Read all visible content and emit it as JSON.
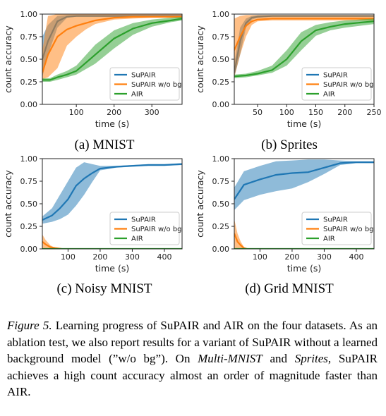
{
  "colors": {
    "SuPAIR": "#1f77b4",
    "SuPAIR w/o bg": "#ff7f0e",
    "AIR": "#2ca02c"
  },
  "chart_data": [
    {
      "type": "line",
      "caption": "(a) MNIST",
      "xlabel": "time (s)",
      "ylabel": "count accuracy",
      "xlim": [
        10,
        380
      ],
      "ylim": [
        0,
        1
      ],
      "xticks": [
        100,
        200,
        300
      ],
      "yticks": [
        0.0,
        0.25,
        0.5,
        0.75,
        1.0
      ],
      "legend": "lower-right",
      "series": [
        {
          "name": "SuPAIR",
          "x": [
            10,
            25,
            50,
            75,
            100,
            150,
            200,
            250,
            300,
            380
          ],
          "y": [
            0.5,
            0.7,
            0.92,
            0.97,
            0.98,
            0.98,
            0.98,
            0.98,
            0.98,
            0.98
          ],
          "lo": [
            0.3,
            0.55,
            0.85,
            0.96,
            0.97,
            0.97,
            0.97,
            0.97,
            0.97,
            0.97
          ],
          "hi": [
            0.75,
            0.88,
            0.98,
            0.99,
            0.99,
            0.99,
            0.99,
            0.99,
            0.99,
            0.99
          ]
        },
        {
          "name": "SuPAIR w/o bg",
          "x": [
            10,
            25,
            50,
            75,
            100,
            125,
            150,
            200,
            250,
            300,
            380
          ],
          "y": [
            0.35,
            0.55,
            0.75,
            0.83,
            0.87,
            0.9,
            0.93,
            0.96,
            0.97,
            0.97,
            0.97
          ],
          "lo": [
            0.28,
            0.3,
            0.4,
            0.65,
            0.75,
            0.83,
            0.89,
            0.94,
            0.95,
            0.96,
            0.96
          ],
          "hi": [
            0.6,
            0.98,
            1.0,
            1.0,
            1.0,
            1.0,
            1.0,
            1.0,
            1.0,
            1.0,
            1.0
          ]
        },
        {
          "name": "AIR",
          "x": [
            10,
            30,
            50,
            75,
            100,
            150,
            200,
            250,
            300,
            350,
            380
          ],
          "y": [
            0.27,
            0.27,
            0.3,
            0.33,
            0.37,
            0.55,
            0.73,
            0.84,
            0.9,
            0.93,
            0.95
          ],
          "lo": [
            0.25,
            0.25,
            0.27,
            0.3,
            0.33,
            0.45,
            0.62,
            0.77,
            0.86,
            0.91,
            0.93
          ],
          "hi": [
            0.29,
            0.29,
            0.33,
            0.37,
            0.43,
            0.66,
            0.82,
            0.9,
            0.94,
            0.96,
            0.97
          ]
        }
      ]
    },
    {
      "type": "line",
      "caption": "(b) Sprites",
      "xlabel": "time (s)",
      "ylabel": "count accuracy",
      "xlim": [
        10,
        250
      ],
      "ylim": [
        0,
        1
      ],
      "xticks": [
        50,
        100,
        150,
        200,
        250
      ],
      "yticks": [
        0.0,
        0.25,
        0.5,
        0.75,
        1.0
      ],
      "legend": "lower-right",
      "series": [
        {
          "name": "SuPAIR",
          "x": [
            10,
            20,
            30,
            40,
            50,
            75,
            100,
            150,
            200,
            250
          ],
          "y": [
            0.35,
            0.7,
            0.9,
            0.96,
            0.97,
            0.98,
            0.98,
            0.98,
            0.98,
            0.98
          ],
          "lo": [
            0.3,
            0.55,
            0.85,
            0.94,
            0.96,
            0.97,
            0.97,
            0.97,
            0.97,
            0.97
          ],
          "hi": [
            0.45,
            0.85,
            0.95,
            0.98,
            0.99,
            0.99,
            0.99,
            0.99,
            0.99,
            0.99
          ]
        },
        {
          "name": "SuPAIR w/o bg",
          "x": [
            10,
            20,
            30,
            40,
            50,
            75,
            100,
            150,
            200,
            250
          ],
          "y": [
            0.6,
            0.75,
            0.87,
            0.92,
            0.94,
            0.95,
            0.95,
            0.95,
            0.95,
            0.95
          ],
          "lo": [
            0.3,
            0.55,
            0.75,
            0.88,
            0.92,
            0.93,
            0.93,
            0.93,
            0.93,
            0.93
          ],
          "hi": [
            0.95,
            0.98,
            0.99,
            0.99,
            0.99,
            0.99,
            0.99,
            0.99,
            0.99,
            0.99
          ]
        },
        {
          "name": "AIR",
          "x": [
            10,
            30,
            50,
            75,
            100,
            125,
            150,
            175,
            200,
            250
          ],
          "y": [
            0.31,
            0.32,
            0.34,
            0.38,
            0.5,
            0.7,
            0.82,
            0.86,
            0.89,
            0.92
          ],
          "lo": [
            0.29,
            0.3,
            0.32,
            0.35,
            0.43,
            0.6,
            0.76,
            0.82,
            0.85,
            0.89
          ],
          "hi": [
            0.33,
            0.34,
            0.37,
            0.43,
            0.6,
            0.8,
            0.88,
            0.91,
            0.93,
            0.95
          ]
        }
      ]
    },
    {
      "type": "line",
      "caption": "(c) Noisy MNIST",
      "xlabel": "time (s)",
      "ylabel": "count accuracy",
      "xlim": [
        20,
        455
      ],
      "ylim": [
        0,
        1
      ],
      "xticks": [
        100,
        200,
        300,
        400
      ],
      "yticks": [
        0.0,
        0.25,
        0.5,
        0.75,
        1.0
      ],
      "legend": "lower-right",
      "series": [
        {
          "name": "SuPAIR",
          "x": [
            20,
            50,
            75,
            100,
            125,
            150,
            175,
            200,
            250,
            300,
            350,
            400,
            455
          ],
          "y": [
            0.32,
            0.37,
            0.45,
            0.55,
            0.7,
            0.78,
            0.84,
            0.89,
            0.91,
            0.92,
            0.93,
            0.93,
            0.94
          ],
          "lo": [
            0.28,
            0.3,
            0.33,
            0.38,
            0.48,
            0.6,
            0.74,
            0.87,
            0.9,
            0.91,
            0.92,
            0.92,
            0.93
          ],
          "hi": [
            0.36,
            0.45,
            0.6,
            0.75,
            0.9,
            0.96,
            0.94,
            0.92,
            0.92,
            0.93,
            0.94,
            0.94,
            0.95
          ]
        },
        {
          "name": "SuPAIR w/o bg",
          "x": [
            20,
            30,
            45,
            60,
            80
          ],
          "y": [
            0.08,
            0.05,
            0.02,
            0.01,
            0.0
          ],
          "lo": [
            0.0,
            0.0,
            0.0,
            0.0,
            0.0
          ],
          "hi": [
            0.16,
            0.1,
            0.04,
            0.01,
            0.0
          ]
        },
        {
          "name": "AIR",
          "x": [
            20,
            100,
            200,
            300,
            400,
            455
          ],
          "y": [
            0.0,
            0.0,
            0.0,
            0.0,
            0.0,
            0.0
          ],
          "lo": [
            0.0,
            0.0,
            0.0,
            0.0,
            0.0,
            0.0
          ],
          "hi": [
            0.0,
            0.0,
            0.0,
            0.0,
            0.0,
            0.0
          ]
        }
      ]
    },
    {
      "type": "line",
      "caption": "(d) Grid MNIST",
      "xlabel": "time (s)",
      "ylabel": "count accuracy",
      "xlim": [
        20,
        455
      ],
      "ylim": [
        0,
        1
      ],
      "xticks": [
        100,
        200,
        300,
        400
      ],
      "yticks": [
        0.0,
        0.25,
        0.5,
        0.75,
        1.0
      ],
      "legend": "lower-right",
      "series": [
        {
          "name": "SuPAIR",
          "x": [
            20,
            50,
            100,
            150,
            200,
            250,
            300,
            350,
            400,
            455
          ],
          "y": [
            0.55,
            0.71,
            0.77,
            0.82,
            0.84,
            0.85,
            0.9,
            0.95,
            0.96,
            0.96
          ],
          "lo": [
            0.43,
            0.54,
            0.6,
            0.64,
            0.67,
            0.74,
            0.83,
            0.93,
            0.95,
            0.95
          ],
          "hi": [
            0.68,
            0.86,
            0.92,
            0.97,
            0.98,
            0.99,
            0.99,
            0.98,
            0.97,
            0.97
          ]
        },
        {
          "name": "SuPAIR w/o bg",
          "x": [
            20,
            30,
            40,
            50,
            60
          ],
          "y": [
            0.17,
            0.08,
            0.04,
            0.01,
            0.0
          ],
          "lo": [
            0.0,
            0.0,
            0.0,
            0.0,
            0.0
          ],
          "hi": [
            0.33,
            0.17,
            0.08,
            0.02,
            0.0
          ]
        },
        {
          "name": "AIR",
          "x": [
            20,
            100,
            200,
            300,
            400,
            455
          ],
          "y": [
            0.0,
            0.0,
            0.0,
            0.0,
            0.0,
            0.0
          ],
          "lo": [
            0.0,
            0.0,
            0.0,
            0.0,
            0.0,
            0.0
          ],
          "hi": [
            0.0,
            0.0,
            0.0,
            0.0,
            0.0,
            0.0
          ]
        }
      ]
    }
  ],
  "caption": {
    "label": "Figure 5.",
    "text1": " Learning progress of SuPAIR and AIR on the four datasets. As an ablation test, we also report results for a variant of SuPAIR without a learned background model (”w/o bg”). On ",
    "em1": "Multi-MNIST",
    "text2": " and ",
    "em2": "Sprites",
    "text3": ", SuPAIR achieves a high count accuracy almost an order of magnitude faster than AIR."
  }
}
